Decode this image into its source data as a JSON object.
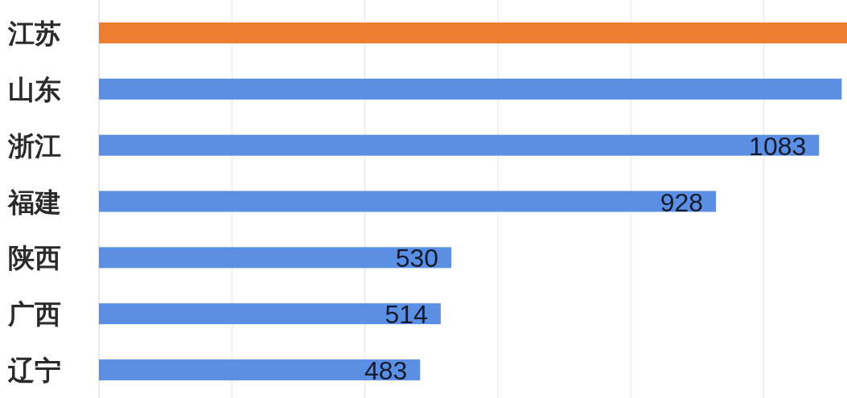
{
  "chart_data": {
    "type": "bar",
    "orientation": "horizontal",
    "categories": [
      "江苏",
      "山东",
      "浙江",
      "福建",
      "陕西",
      "广西",
      "辽宁"
    ],
    "values": [
      1125,
      1117,
      1083,
      928,
      530,
      514,
      483
    ],
    "colors": [
      "#ed7d31",
      "#5b8fe3",
      "#5b8fe3",
      "#5b8fe3",
      "#5b8fe3",
      "#5b8fe3",
      "#5b8fe3"
    ],
    "value_labels": [
      null,
      null,
      "1083",
      "928",
      "530",
      "514",
      "483"
    ],
    "xlim": [
      0,
      1125
    ],
    "xticks": [
      {
        "value": 200,
        "label": null
      },
      {
        "value": 400,
        "label": null
      },
      {
        "value": 600,
        "label": null
      },
      {
        "value": 800,
        "label": null
      },
      {
        "value": 1000,
        "label": null
      }
    ],
    "grid": "x",
    "tick_labels": "y"
  }
}
